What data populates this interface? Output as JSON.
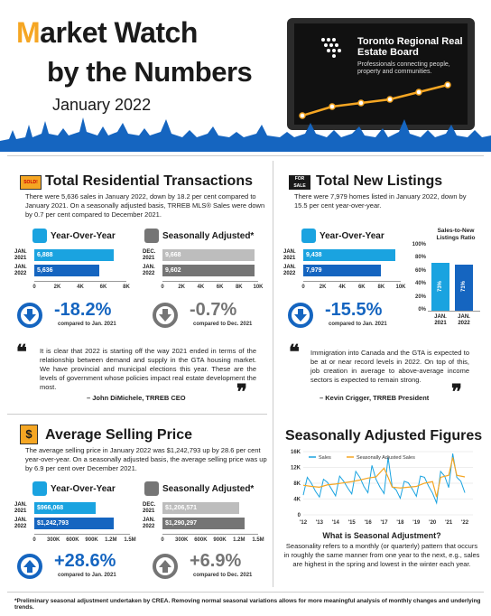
{
  "header": {
    "title_m": "M",
    "title_rest": "arket Watch",
    "title_line2": "by the Numbers",
    "period": "January 2022",
    "org_name": "Toronto Regional Real Estate Board",
    "org_tagline": "Professionals connecting people, property and communities."
  },
  "colors": {
    "accent": "#f5a623",
    "blue_light": "#1aa3e0",
    "blue_dark": "#1565c0",
    "grey_light": "#bdbdbd",
    "grey_dark": "#757575"
  },
  "sales": {
    "icon": "sold-sign-icon",
    "title": "Total Residential Transactions",
    "text": "There were 5,636 sales in January 2022, down by 18.2 per cent compared to January 2021. On a seasonally adjusted basis, TRREB MLS® Sales were down by 0.7 per cent compared to December 2021.",
    "yoy_head": "Year-Over-Year",
    "sa_head": "Seasonally Adjusted*"
  },
  "listings": {
    "icon": "for-sale-sign-icon",
    "title": "Total New Listings",
    "text": "There were 7,979 homes listed in January 2022, down by 15.5 per cent year-over-year.",
    "yoy_head": "Year-Over-Year"
  },
  "price": {
    "icon": "dollar-sign-icon",
    "title": "Average Selling Price",
    "text": "The average selling price in January 2022 was $1,242,793 up by 28.6 per cent year-over-year. On a seasonally adjusted basis, the average selling price was up by 6.9 per cent over December 2021.",
    "yoy_head": "Year-Over-Year",
    "sa_head": "Seasonally Adjusted*"
  },
  "quote1": {
    "text": "It is clear that 2022 is starting off the way 2021 ended in terms of the relationship between demand and supply in the GTA housing market. We have provincial and municipal elections this year. These are the levels of government whose policies impact real estate development the most.",
    "by": "– John DiMichele, TRREB CEO"
  },
  "quote2": {
    "text": "Immigration into Canada and the GTA is expected to be at or near record levels in 2022. On top of this, job creation in average to above-average income sectors is expected to remain strong.",
    "by": "– Kevin Crigger, TRREB President"
  },
  "sa_section": {
    "title": "Seasonally Adjusted Figures",
    "q_head": "What is Seasonal Adjustment?",
    "q_text": "Seasonality refers to a monthly (or quarterly) pattern that occurs in roughly the same manner from one year to the next, e.g., sales are highest in the spring and lowest in the winter each year."
  },
  "footnote": "*Preliminary seasonal adjustment undertaken by CREA. Removing normal seasonal variations allows for more meaningful analysis of monthly changes and underlying trends.",
  "chart_data": [
    {
      "type": "bar",
      "orientation": "horizontal",
      "chart": "sales-yoy",
      "categories": [
        "JAN. 2021",
        "JAN. 2022"
      ],
      "values": [
        6888,
        5636
      ],
      "value_labels": [
        "6,888",
        "5,636"
      ],
      "xlim": [
        0,
        8000
      ],
      "ticks": [
        "0",
        "2K",
        "4K",
        "6K",
        "8K"
      ],
      "change": "-18.2%",
      "change_note": "compared to Jan. 2021",
      "direction": "down"
    },
    {
      "type": "bar",
      "orientation": "horizontal",
      "chart": "sales-sa",
      "categories": [
        "DEC. 2021",
        "JAN. 2022"
      ],
      "values": [
        9668,
        9602
      ],
      "value_labels": [
        "9,668",
        "9,602"
      ],
      "xlim": [
        0,
        10000
      ],
      "ticks": [
        "0",
        "2K",
        "4K",
        "6K",
        "8K",
        "10K"
      ],
      "change": "-0.7%",
      "change_note": "compared to Dec. 2021",
      "direction": "down"
    },
    {
      "type": "bar",
      "orientation": "horizontal",
      "chart": "listings-yoy",
      "categories": [
        "JAN. 2021",
        "JAN. 2022"
      ],
      "values": [
        9438,
        7979
      ],
      "value_labels": [
        "9,438",
        "7,979"
      ],
      "xlim": [
        0,
        10000
      ],
      "ticks": [
        "0",
        "2K",
        "4K",
        "6K",
        "8K",
        "10K"
      ],
      "change": "-15.5%",
      "change_note": "compared to Jan. 2021",
      "direction": "down"
    },
    {
      "type": "bar",
      "orientation": "vertical",
      "chart": "sales-to-new-listings",
      "title": "Sales-to-New Listings Ratio",
      "categories": [
        "JAN. 2021",
        "JAN. 2022"
      ],
      "values": [
        73,
        71
      ],
      "value_labels": [
        "73%",
        "71%"
      ],
      "ylim": [
        0,
        100
      ],
      "ticks": [
        "0%",
        "20%",
        "40%",
        "60%",
        "80%",
        "100%"
      ]
    },
    {
      "type": "bar",
      "orientation": "horizontal",
      "chart": "price-yoy",
      "categories": [
        "JAN. 2021",
        "JAN. 2022"
      ],
      "values": [
        966068,
        1242793
      ],
      "value_labels": [
        "$966,068",
        "$1,242,793"
      ],
      "xlim": [
        0,
        1500000
      ],
      "ticks": [
        "0",
        "300K",
        "600K",
        "900K",
        "1.2M",
        "1.5M"
      ],
      "change": "+28.6%",
      "change_note": "compared to Jan. 2021",
      "direction": "up"
    },
    {
      "type": "bar",
      "orientation": "horizontal",
      "chart": "price-sa",
      "categories": [
        "DEC. 2021",
        "JAN. 2022"
      ],
      "values": [
        1206571,
        1290297
      ],
      "value_labels": [
        "$1,206,571",
        "$1,290,297"
      ],
      "xlim": [
        0,
        1500000
      ],
      "ticks": [
        "0",
        "300K",
        "600K",
        "900K",
        "1.2M",
        "1.5M"
      ],
      "change": "+6.9%",
      "change_note": "compared to Dec. 2021",
      "direction": "up"
    },
    {
      "type": "line",
      "chart": "seasonally-adjusted-sales",
      "ylim": [
        0,
        16000
      ],
      "yticks": [
        "0",
        "4K",
        "8K",
        "12K",
        "16K"
      ],
      "xticks": [
        "'12",
        "'13",
        "'14",
        "'15",
        "'16",
        "'17",
        "'18",
        "'19",
        "'20",
        "'21",
        "'22"
      ],
      "series": [
        {
          "name": "Sales",
          "color": "#1aa3e0",
          "x": [
            2012,
            2012.25,
            2012.5,
            2012.75,
            2013,
            2013.25,
            2013.5,
            2013.75,
            2014,
            2014.25,
            2014.5,
            2014.75,
            2015,
            2015.25,
            2015.5,
            2015.75,
            2016,
            2016.25,
            2016.5,
            2016.75,
            2017,
            2017.25,
            2017.5,
            2017.75,
            2018,
            2018.25,
            2018.5,
            2018.75,
            2019,
            2019.25,
            2019.5,
            2019.75,
            2020,
            2020.25,
            2020.5,
            2020.75,
            2021,
            2021.25,
            2021.5,
            2021.75,
            2022
          ],
          "values": [
            5000,
            9500,
            8000,
            6000,
            4500,
            9000,
            8200,
            6500,
            4800,
            9800,
            8500,
            6800,
            5300,
            11000,
            9500,
            7200,
            5600,
            12500,
            9000,
            7000,
            5400,
            14500,
            7200,
            6300,
            4200,
            8500,
            8100,
            6500,
            4700,
            9800,
            9500,
            7300,
            5500,
            3000,
            11000,
            9800,
            6900,
            15500,
            9500,
            8500,
            5600
          ]
        },
        {
          "name": "Seasonally Adjusted Sales",
          "color": "#f5a623",
          "x": [
            2012,
            2012.5,
            2013,
            2013.5,
            2014,
            2014.5,
            2015,
            2015.5,
            2016,
            2016.5,
            2017,
            2017.25,
            2017.5,
            2018,
            2018.5,
            2019,
            2019.5,
            2020,
            2020.25,
            2020.5,
            2021,
            2021.25,
            2021.5,
            2022
          ],
          "values": [
            7500,
            7200,
            7000,
            7600,
            7800,
            8100,
            8400,
            8800,
            9300,
            9600,
            11800,
            9500,
            7000,
            6800,
            7000,
            7200,
            8000,
            8400,
            4500,
            9500,
            10000,
            14500,
            10000,
            9600
          ]
        }
      ]
    }
  ]
}
